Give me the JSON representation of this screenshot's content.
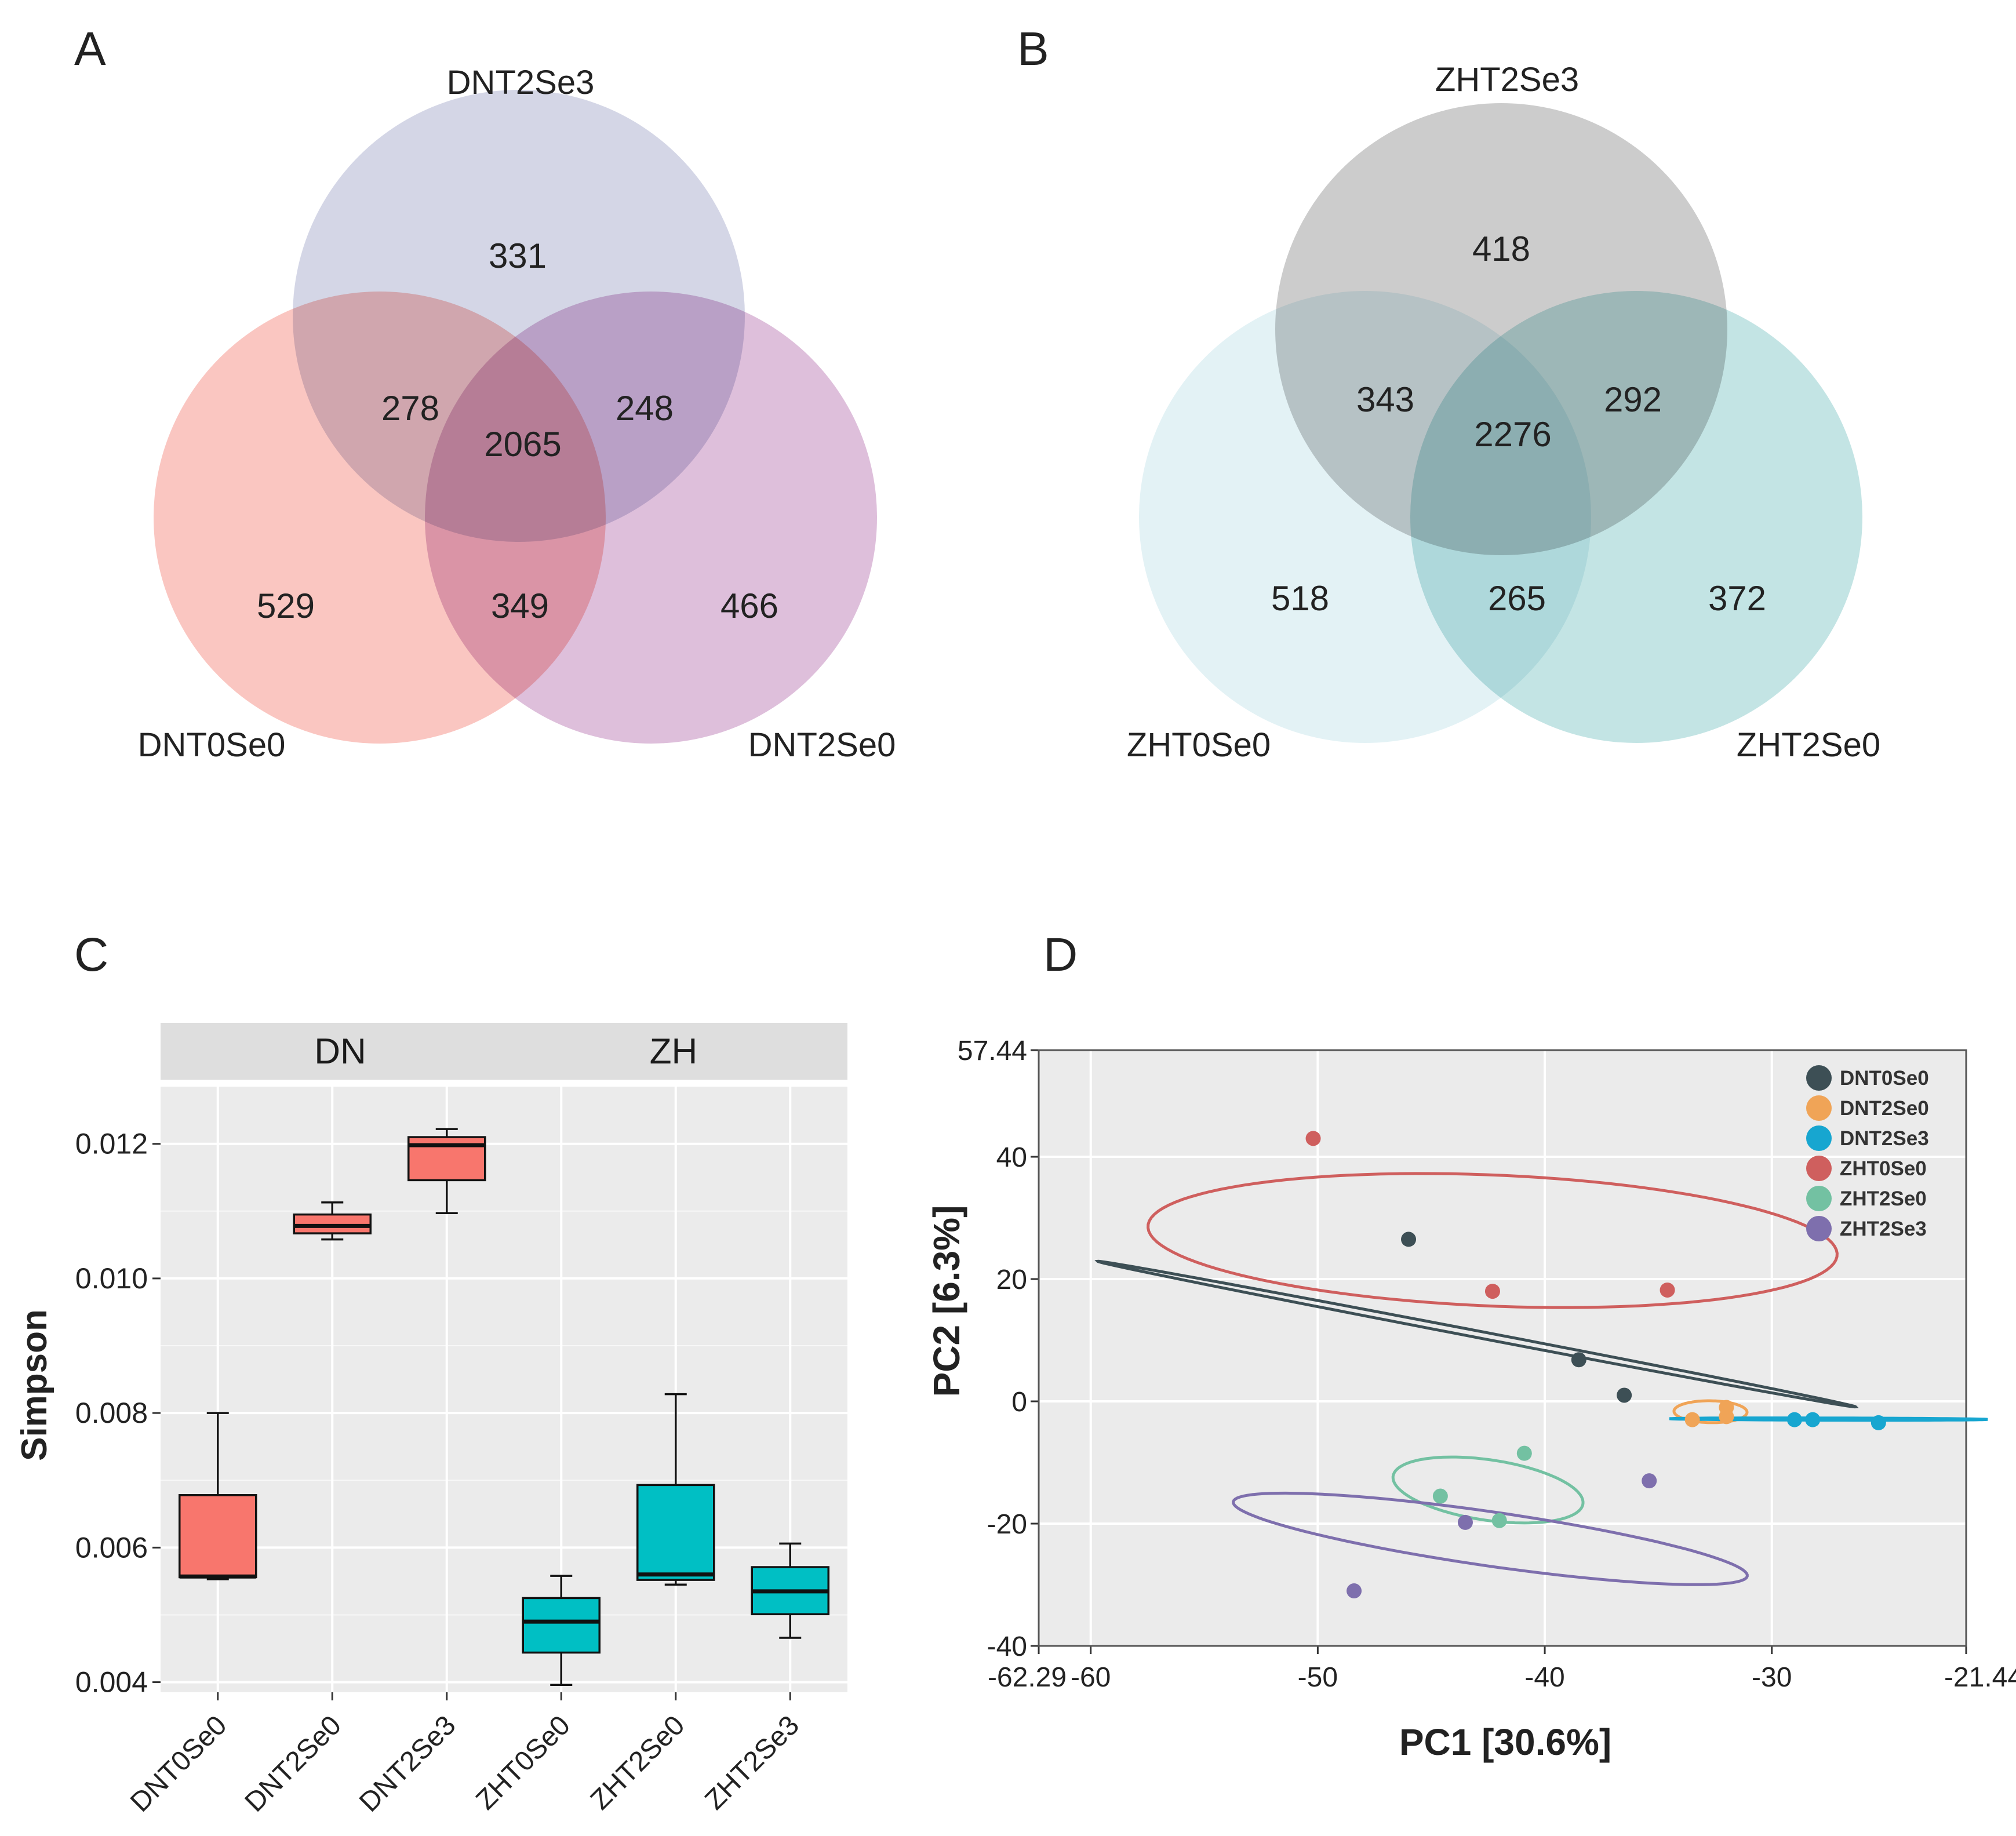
{
  "panels": {
    "A": {
      "letter": "A"
    },
    "B": {
      "letter": "B"
    },
    "C": {
      "letter": "C"
    },
    "D": {
      "letter": "D"
    }
  },
  "chart_data": [
    {
      "panel": "A",
      "type": "venn",
      "sets": [
        "DNT2Se3",
        "DNT0Se0",
        "DNT2Se0"
      ],
      "colors": [
        "#b9bdd6",
        "#f7a39b",
        "#c998c5"
      ],
      "regions": {
        "top_only": "331",
        "left_only": "529",
        "right_only": "466",
        "top_left": "278",
        "top_right": "248",
        "left_right": "349",
        "all": "2065"
      }
    },
    {
      "panel": "B",
      "type": "venn",
      "sets": [
        "ZHT2Se3",
        "ZHT0Se0",
        "ZHT2Se0"
      ],
      "colors": [
        "#b4b4b4",
        "#d2eaef",
        "#9ed4d4"
      ],
      "regions": {
        "top_only": "418",
        "left_only": "518",
        "right_only": "372",
        "top_left": "343",
        "top_right": "292",
        "left_right": "265",
        "all": "2276"
      }
    },
    {
      "panel": "C",
      "type": "box",
      "ylabel": "Simpson",
      "facets": [
        "DN",
        "ZH"
      ],
      "ylim": [
        0.00385,
        0.01285
      ],
      "yticks": [
        "0.004",
        "0.006",
        "0.008",
        "0.010",
        "0.012"
      ],
      "categories": [
        "DNT0Se0",
        "DNT2Se0",
        "DNT2Se3",
        "ZHT0Se0",
        "ZHT2Se0",
        "ZHT2Se3"
      ],
      "boxes": [
        {
          "group": "DNT0Se0",
          "facet": "DN",
          "min": 0.00553,
          "q1": 0.00556,
          "median": 0.00557,
          "q3": 0.00678,
          "max": 0.008,
          "color": "#f8766d"
        },
        {
          "group": "DNT2Se0",
          "facet": "DN",
          "min": 0.01058,
          "q1": 0.01067,
          "median": 0.01078,
          "q3": 0.01095,
          "max": 0.01113,
          "color": "#f8766d"
        },
        {
          "group": "DNT2Se3",
          "facet": "DN",
          "min": 0.01097,
          "q1": 0.01146,
          "median": 0.01198,
          "q3": 0.0121,
          "max": 0.01222,
          "color": "#f8766d"
        },
        {
          "group": "ZHT0Se0",
          "facet": "ZH",
          "min": 0.00396,
          "q1": 0.00444,
          "median": 0.0049,
          "q3": 0.00525,
          "max": 0.00558,
          "color": "#00bfc4"
        },
        {
          "group": "ZHT2Se0",
          "facet": "ZH",
          "min": 0.00545,
          "q1": 0.00552,
          "median": 0.0056,
          "q3": 0.00693,
          "max": 0.00828,
          "color": "#00bfc4"
        },
        {
          "group": "ZHT2Se3",
          "facet": "ZH",
          "min": 0.00466,
          "q1": 0.00501,
          "median": 0.00535,
          "q3": 0.00571,
          "max": 0.00606,
          "color": "#00bfc4"
        }
      ]
    },
    {
      "panel": "D",
      "type": "scatter",
      "xlabel": "PC1 [30.6%]",
      "ylabel": "PC2 [6.3%]",
      "xlim": [
        -62.29,
        -21.44
      ],
      "ylim": [
        -40,
        57.44
      ],
      "xticks": [
        "-62.29",
        "-60",
        "-50",
        "-40",
        "-30",
        "-21.44"
      ],
      "yticks": [
        "57.44",
        "40",
        "20",
        "0",
        "-20",
        "-40"
      ],
      "xgrid": [
        -60,
        -50,
        -40,
        -30
      ],
      "ygrid": [
        40,
        20,
        0,
        -20
      ],
      "legend_position": "top-right",
      "series": [
        {
          "name": "DNT0Se0",
          "color": "#3d4f55",
          "points": [
            [
              -46,
              26.5
            ],
            [
              -38.5,
              6.8
            ],
            [
              -36.5,
              1
            ]
          ],
          "ellipse": {
            "cx": -43,
            "cy": 11,
            "rx": 20.5,
            "ry": 0.45,
            "angle_deg": -35.5
          }
        },
        {
          "name": "DNT2Se0",
          "color": "#f0a457",
          "points": [
            [
              -33.5,
              -3
            ],
            [
              -32,
              -1
            ],
            [
              -32,
              -2.5
            ]
          ],
          "ellipse": {
            "cx": -32.7,
            "cy": -1.7,
            "rx": 1.6,
            "ry": 1.8,
            "angle_deg": 12
          }
        },
        {
          "name": "DNT2Se3",
          "color": "#17a6d0",
          "points": [
            [
              -29,
              -3
            ],
            [
              -28.2,
              -3
            ],
            [
              -25.3,
              -3.5
            ]
          ],
          "ellipse": {
            "cx": -27.5,
            "cy": -2.9,
            "rx": 7,
            "ry": 0.18,
            "angle_deg": -0.5
          }
        },
        {
          "name": "ZHT0Se0",
          "color": "#cf5f5e",
          "points": [
            [
              -50.2,
              43
            ],
            [
              -42.3,
              18
            ],
            [
              -34.6,
              18.2
            ]
          ],
          "ellipse": {
            "cx": -42.3,
            "cy": 26.3,
            "rx": 15.5,
            "ry": 10.5,
            "angle_deg": -16
          }
        },
        {
          "name": "ZHT2Se0",
          "color": "#73c1a2",
          "points": [
            [
              -44.6,
              -15.5
            ],
            [
              -40.9,
              -8.5
            ],
            [
              -42,
              -19.5
            ]
          ],
          "ellipse": {
            "cx": -42.5,
            "cy": -14.5,
            "rx": 3.6,
            "ry": 5.8,
            "angle_deg": 28
          }
        },
        {
          "name": "ZHT2Se3",
          "color": "#7e6fad",
          "points": [
            [
              -48.4,
              -31
            ],
            [
              -43.5,
              -19.8
            ],
            [
              -35.4,
              -13
            ]
          ],
          "ellipse": {
            "cx": -42.4,
            "cy": -22.5,
            "rx": 13,
            "ry": 3.9,
            "angle_deg": -31
          }
        }
      ]
    }
  ]
}
